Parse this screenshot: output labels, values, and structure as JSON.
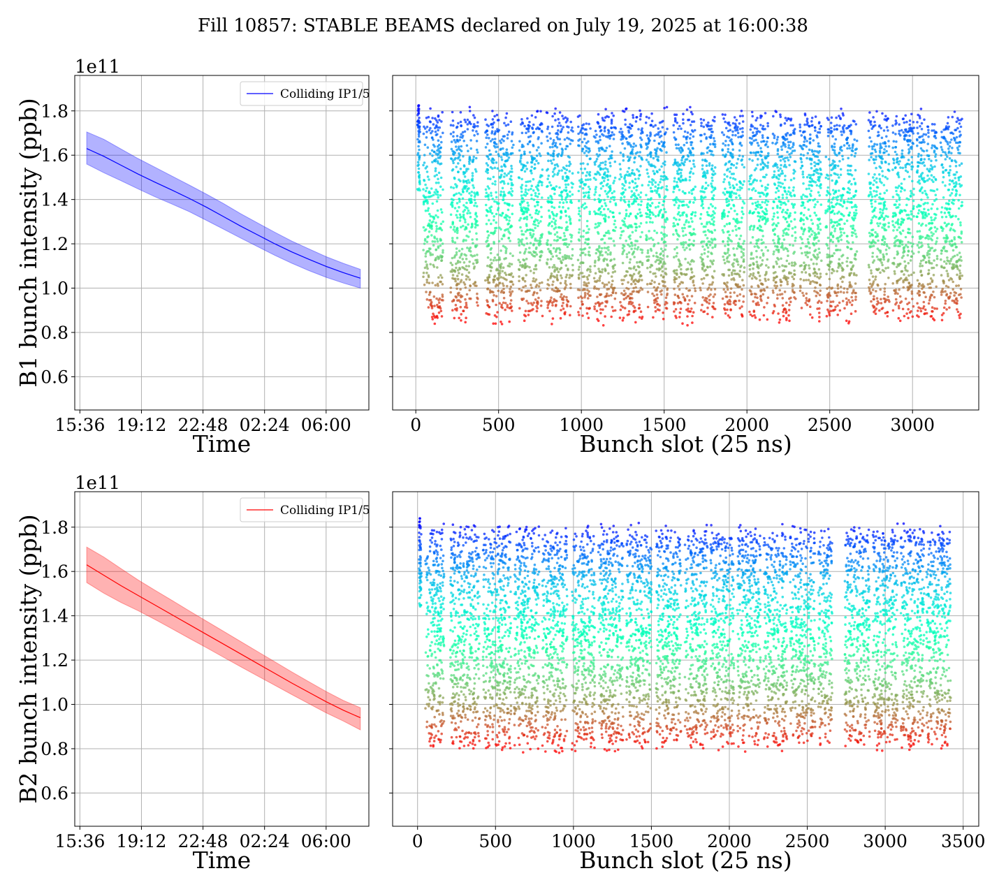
{
  "title": "Fill 10857: STABLE BEAMS declared on July 19, 2025 at 16:00:38",
  "colors": {
    "beam1": "#0000ff",
    "beam2": "#ff0000",
    "grid": "#b0b0b0",
    "axis": "#000000"
  },
  "chart_data": [
    {
      "id": "b1_time",
      "type": "line",
      "xlabel": "Time",
      "ylabel": "B1 bunch intensity (ppb)",
      "y_multiplier": "1e11",
      "xticks": [
        "15:36",
        "19:12",
        "22:48",
        "02:24",
        "06:00"
      ],
      "xlim_hours": [
        15.3,
        32.5
      ],
      "ylim": [
        0.45,
        1.96
      ],
      "yticks": [
        "0.6",
        "0.8",
        "1.0",
        "1.2",
        "1.4",
        "1.6",
        "1.8"
      ],
      "legend": "top-right",
      "grid": true,
      "series": [
        {
          "name": "Colliding IP1/5",
          "color": "#0000ff",
          "x_hours": [
            16.0,
            17.0,
            18.0,
            19.0,
            20.0,
            21.0,
            22.0,
            23.0,
            24.0,
            25.0,
            26.0,
            27.0,
            28.0,
            29.0,
            30.0,
            31.0,
            32.0
          ],
          "mean": [
            1.63,
            1.595,
            1.555,
            1.515,
            1.478,
            1.442,
            1.405,
            1.365,
            1.323,
            1.28,
            1.24,
            1.2,
            1.163,
            1.13,
            1.098,
            1.07,
            1.045
          ],
          "upper": [
            1.705,
            1.672,
            1.628,
            1.585,
            1.545,
            1.505,
            1.465,
            1.424,
            1.382,
            1.336,
            1.294,
            1.252,
            1.212,
            1.177,
            1.142,
            1.112,
            1.085
          ],
          "lower": [
            1.56,
            1.521,
            1.485,
            1.448,
            1.412,
            1.379,
            1.345,
            1.306,
            1.266,
            1.226,
            1.187,
            1.148,
            1.112,
            1.079,
            1.049,
            1.023,
            1.0
          ]
        }
      ]
    },
    {
      "id": "b1_slots",
      "type": "scatter",
      "xlabel": "Bunch slot (25 ns)",
      "xlim": [
        -140,
        3400
      ],
      "ylim": [
        0.45,
        1.96
      ],
      "xticks": [
        "0",
        "500",
        "1000",
        "1500",
        "2000",
        "2500",
        "3000"
      ],
      "grid": true,
      "colormap": "rainbow",
      "value_range": [
        0.85,
        1.82
      ],
      "trains": [
        [
          10,
          25
        ],
        [
          45,
          165
        ],
        [
          210,
          375
        ],
        [
          420,
          590
        ],
        [
          620,
          765
        ],
        [
          790,
          950
        ],
        [
          980,
          1055
        ],
        [
          1075,
          1210
        ],
        [
          1230,
          1370
        ],
        [
          1390,
          1520
        ],
        [
          1555,
          1690
        ],
        [
          1715,
          1810
        ],
        [
          1850,
          1985
        ],
        [
          2010,
          2130
        ],
        [
          2155,
          2295
        ],
        [
          2320,
          2450
        ],
        [
          2475,
          2590
        ],
        [
          2600,
          2665
        ],
        [
          2735,
          2860
        ],
        [
          2880,
          3010
        ],
        [
          3025,
          3150
        ],
        [
          3170,
          3300
        ]
      ]
    },
    {
      "id": "b2_time",
      "type": "line",
      "xlabel": "Time",
      "ylabel": "B2 bunch intensity (ppb)",
      "y_multiplier": "1e11",
      "xticks": [
        "15:36",
        "19:12",
        "22:48",
        "02:24",
        "06:00"
      ],
      "xlim_hours": [
        15.3,
        32.5
      ],
      "ylim": [
        0.45,
        1.96
      ],
      "yticks": [
        "0.6",
        "0.8",
        "1.0",
        "1.2",
        "1.4",
        "1.6",
        "1.8"
      ],
      "legend": "top-right",
      "grid": true,
      "series": [
        {
          "name": "Colliding IP1/5",
          "color": "#ff0000",
          "x_hours": [
            16.0,
            17.0,
            18.0,
            19.0,
            20.0,
            21.0,
            22.0,
            23.0,
            24.0,
            25.0,
            26.0,
            27.0,
            28.0,
            29.0,
            30.0,
            31.0,
            32.0
          ],
          "mean": [
            1.63,
            1.583,
            1.536,
            1.492,
            1.448,
            1.404,
            1.36,
            1.316,
            1.272,
            1.228,
            1.184,
            1.14,
            1.096,
            1.054,
            1.012,
            0.974,
            0.94
          ],
          "upper": [
            1.71,
            1.665,
            1.613,
            1.562,
            1.515,
            1.469,
            1.422,
            1.376,
            1.33,
            1.284,
            1.238,
            1.192,
            1.146,
            1.102,
            1.058,
            1.018,
            0.985
          ],
          "lower": [
            1.55,
            1.502,
            1.46,
            1.423,
            1.383,
            1.341,
            1.298,
            1.256,
            1.213,
            1.17,
            1.128,
            1.086,
            1.044,
            1.003,
            0.962,
            0.925,
            0.885
          ]
        }
      ]
    },
    {
      "id": "b2_slots",
      "type": "scatter",
      "xlabel": "Bunch slot (25 ns)",
      "xlim": [
        -160,
        3600
      ],
      "ylim": [
        0.45,
        1.96
      ],
      "xticks": [
        "0",
        "500",
        "1000",
        "1500",
        "2000",
        "2500",
        "3000",
        "3500"
      ],
      "grid": true,
      "colormap": "rainbow",
      "value_range": [
        0.8,
        1.82
      ],
      "trains": [
        [
          10,
          25
        ],
        [
          50,
          170
        ],
        [
          210,
          400
        ],
        [
          420,
          600
        ],
        [
          620,
          780
        ],
        [
          800,
          960
        ],
        [
          990,
          1140
        ],
        [
          1160,
          1320
        ],
        [
          1340,
          1500
        ],
        [
          1530,
          1690
        ],
        [
          1715,
          1860
        ],
        [
          1880,
          2030
        ],
        [
          2050,
          2200
        ],
        [
          2220,
          2370
        ],
        [
          2390,
          2550
        ],
        [
          2570,
          2660
        ],
        [
          2740,
          2900
        ],
        [
          2920,
          3080
        ],
        [
          3100,
          3250
        ],
        [
          3265,
          3420
        ]
      ]
    }
  ]
}
